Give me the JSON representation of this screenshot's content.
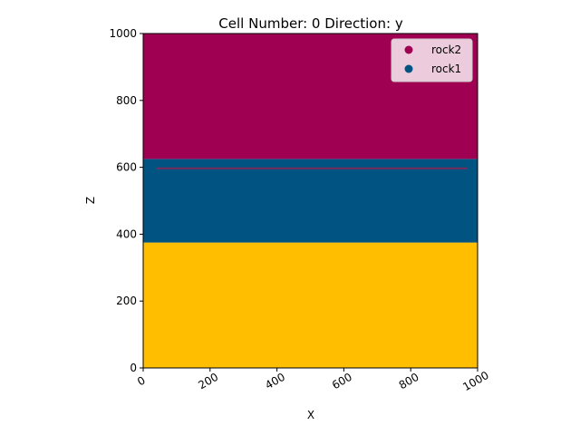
{
  "chart_data": {
    "type": "area",
    "title": "Cell Number: 0 Direction: y",
    "xlabel": "X",
    "ylabel": "Z",
    "xlim": [
      0,
      1000
    ],
    "ylim": [
      0,
      1000
    ],
    "x_ticks": [
      "0",
      "200",
      "400",
      "600",
      "800",
      "1000"
    ],
    "y_ticks": [
      "0",
      "200",
      "400",
      "600",
      "800",
      "1000"
    ],
    "x_tick_values": [
      0,
      200,
      400,
      600,
      800,
      1000
    ],
    "y_tick_values": [
      0,
      200,
      400,
      600,
      800,
      1000
    ],
    "layers": [
      {
        "z_bottom": 0,
        "z_top": 375,
        "color": "#ffbe00"
      },
      {
        "name": "rock1",
        "z_bottom": 375,
        "z_top": 625,
        "color": "#015482"
      },
      {
        "name": "rock2",
        "z_bottom": 625,
        "z_top": 1000,
        "color": "#9f0052"
      }
    ],
    "interface_line": {
      "x": [
        40,
        970
      ],
      "z": 597,
      "color": "#7a2a5a"
    },
    "legend": {
      "placement": "top-right",
      "entries": [
        {
          "label": "rock2",
          "color": "#9f0052"
        },
        {
          "label": "rock1",
          "color": "#015482"
        }
      ]
    },
    "grid": false
  }
}
